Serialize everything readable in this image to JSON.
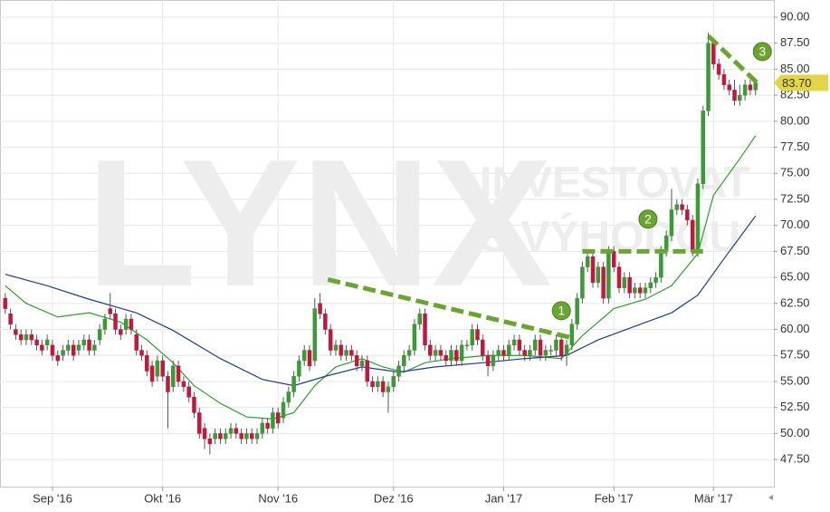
{
  "chart_data": {
    "type": "candlestick",
    "categories": [
      null,
      null,
      null,
      null,
      null,
      null,
      null,
      null,
      null,
      "Sep '16",
      null,
      null,
      null,
      null,
      null,
      null,
      null,
      null,
      null,
      null,
      null,
      null,
      null,
      null,
      null,
      null,
      null,
      null,
      null,
      null,
      "Okt '16",
      null,
      null,
      null,
      null,
      null,
      null,
      null,
      null,
      null,
      null,
      null,
      null,
      null,
      null,
      null,
      null,
      null,
      null,
      null,
      null,
      null,
      "Nov '16",
      null,
      null,
      null,
      null,
      null,
      null,
      null,
      null,
      null,
      null,
      null,
      null,
      null,
      null,
      null,
      null,
      null,
      null,
      null,
      null,
      null,
      "Dez '16",
      null,
      null,
      null,
      null,
      null,
      null,
      null,
      null,
      null,
      null,
      null,
      null,
      null,
      null,
      null,
      null,
      null,
      null,
      null,
      null,
      "Jan '17",
      null,
      null,
      null,
      null,
      null,
      null,
      null,
      null,
      null,
      null,
      null,
      null,
      null,
      null,
      null,
      null,
      null,
      null,
      null,
      null,
      "Feb '17",
      null,
      null,
      null,
      null,
      null,
      null,
      null,
      null,
      null,
      null,
      null,
      null,
      null,
      null,
      null,
      null,
      null,
      null,
      "Mär '17",
      null,
      null,
      null,
      null,
      null,
      null,
      null,
      null
    ],
    "open": [
      63,
      61.5,
      60,
      59.5,
      59,
      59.5,
      59,
      58.5,
      58.5,
      58.5,
      57.5,
      57.5,
      58,
      58.5,
      58,
      58.5,
      59,
      58,
      59,
      60,
      62,
      61.5,
      60,
      60,
      61,
      59.5,
      58,
      57.5,
      56.5,
      55.5,
      57,
      55.5,
      54.5,
      56.5,
      55,
      54.5,
      53.5,
      52,
      50.5,
      49.5,
      49.5,
      50,
      49.5,
      50,
      50.5,
      50,
      49.5,
      50,
      49.5,
      50,
      51,
      50.5,
      52,
      51.5,
      53,
      54,
      55.5,
      57,
      58,
      57,
      62.5,
      61.5,
      60,
      58,
      58.5,
      57.5,
      58,
      57.5,
      56.5,
      57,
      55,
      54.5,
      55,
      54,
      54.5,
      55.5,
      56.5,
      57.5,
      58,
      60.5,
      61.5,
      58.5,
      57.5,
      58,
      57.5,
      57,
      58,
      57,
      58.5,
      58.5,
      60,
      59,
      57.5,
      56.5,
      57.5,
      58,
      57.5,
      58.5,
      59,
      58,
      57.5,
      58,
      59,
      57.5,
      58,
      58,
      59,
      57.5,
      58.5,
      60.5,
      63,
      66,
      67,
      64.5,
      66,
      63,
      67.5,
      66,
      64,
      65,
      63.5,
      64,
      63.5,
      64,
      64.5,
      65,
      67.5,
      69,
      71.5,
      72,
      71.5,
      70.5,
      67.5,
      74,
      81,
      87.5,
      85.5,
      84.5,
      83.5,
      83,
      82,
      82.5,
      83.5,
      83
    ],
    "high": [
      63.5,
      62,
      60.5,
      60,
      60,
      60,
      59.5,
      59,
      59.5,
      59,
      58,
      58.5,
      59,
      59,
      59,
      59.5,
      59.5,
      59,
      60.5,
      61.5,
      63.5,
      62,
      60.5,
      61.5,
      61.5,
      60,
      58.5,
      58,
      57,
      57.5,
      57.5,
      56,
      57,
      57,
      55.5,
      55,
      54,
      52.5,
      51,
      50,
      50.5,
      50.5,
      50.5,
      51,
      51,
      50.5,
      50.5,
      50.5,
      50.5,
      51.5,
      51.5,
      52.5,
      52.5,
      53.5,
      54.5,
      56,
      57.5,
      58.5,
      58.5,
      63,
      63.5,
      62,
      60.5,
      59,
      59,
      58.5,
      58.5,
      58,
      57.5,
      57.5,
      55.5,
      55.5,
      55.5,
      55,
      56,
      57,
      58,
      58.5,
      61,
      62,
      62,
      59,
      58.5,
      58.5,
      58,
      58.5,
      58.5,
      59,
      59,
      60.5,
      60.5,
      59.5,
      58,
      58,
      58.5,
      58.5,
      59,
      59.5,
      59.5,
      58.5,
      58.5,
      59.5,
      59.5,
      58.5,
      58.5,
      59.5,
      59.5,
      59,
      61,
      63.5,
      66.5,
      67.5,
      67.5,
      66.5,
      66.5,
      68,
      68,
      66.5,
      65.5,
      65.5,
      64.5,
      64.5,
      64.5,
      65,
      65.5,
      68,
      69.5,
      73.5,
      72.5,
      72.5,
      72,
      71,
      74.5,
      81.5,
      88.5,
      88,
      86,
      85,
      84,
      84,
      83.5,
      84,
      84,
      84
    ],
    "low": [
      61.5,
      60,
      59,
      58.5,
      58.5,
      58.5,
      58,
      57.5,
      58,
      57,
      56.5,
      57,
      57.5,
      57,
      57.5,
      58,
      57.5,
      57.5,
      58.5,
      59.5,
      61,
      59.5,
      59,
      59.5,
      59.5,
      57.5,
      57,
      55.5,
      54.5,
      55,
      55,
      50.5,
      54,
      54.5,
      54,
      53,
      51.5,
      49.5,
      48.5,
      48,
      49,
      49,
      49,
      49.5,
      49.5,
      49,
      49,
      49,
      49,
      49.5,
      50,
      50,
      50.5,
      51,
      52.5,
      53.5,
      55,
      56.5,
      56,
      56.5,
      61,
      59.5,
      57.5,
      57.5,
      57,
      57,
      57,
      56,
      56,
      54.5,
      54,
      54,
      53.5,
      52,
      54,
      55,
      56,
      57,
      57.5,
      60,
      58,
      57,
      57,
      57,
      56.5,
      56.5,
      56.5,
      56.5,
      58,
      58,
      58.5,
      57,
      55.5,
      56,
      57,
      57,
      57,
      58,
      57.5,
      57,
      57,
      57.5,
      57,
      57,
      57.5,
      57.5,
      57,
      56.5,
      58,
      60,
      62.5,
      65.5,
      64,
      64,
      62.5,
      62.5,
      65.5,
      63.5,
      63.5,
      63,
      63,
      63,
      63,
      63.5,
      64,
      64.5,
      67,
      68.5,
      71,
      71,
      70,
      67,
      67,
      73.5,
      80.5,
      85,
      84,
      83,
      82.5,
      81.5,
      81.5,
      82,
      82.5,
      82.5
    ],
    "close": [
      62,
      60.5,
      59.5,
      59,
      59.5,
      59,
      58.5,
      58,
      59,
      57.5,
      57,
      58,
      58.5,
      57.5,
      58.5,
      59,
      58,
      58.5,
      60,
      61,
      61.5,
      60,
      59.5,
      61,
      60,
      58,
      57.5,
      56,
      55,
      57,
      55.5,
      54,
      56.5,
      55,
      54.5,
      53.5,
      52,
      50,
      49.5,
      49,
      50,
      49.5,
      50,
      50.5,
      50,
      49.5,
      50,
      49.5,
      50,
      51,
      50.5,
      52,
      51,
      53,
      54,
      55.5,
      57,
      58,
      56.5,
      62,
      61.5,
      60,
      58,
      58.5,
      57.5,
      58,
      57.5,
      56.5,
      57,
      55,
      54.5,
      55,
      54,
      54.5,
      55.5,
      56.5,
      57.5,
      58,
      60.5,
      61.5,
      58.5,
      57.5,
      58,
      57.5,
      57,
      58,
      57,
      58.5,
      58.5,
      60,
      59,
      57.5,
      56.5,
      57.5,
      58,
      57.5,
      58.5,
      59,
      58,
      57.5,
      58,
      59,
      57.5,
      58,
      58,
      59,
      57.5,
      58.5,
      60.5,
      63,
      66,
      67,
      64.5,
      66,
      63,
      67.5,
      66,
      64,
      65,
      63.5,
      64,
      63.5,
      64,
      64.5,
      65,
      67.5,
      69,
      71.5,
      72,
      71.5,
      70.5,
      67.5,
      74,
      81,
      87.5,
      85.5,
      84.5,
      83.5,
      83,
      82,
      82.5,
      83.5,
      83,
      83.7
    ],
    "up_color": "#3a9a35",
    "down_color": "#c2183f",
    "lines": [
      {
        "color": "#2e9e2e",
        "x": [
          0,
          4,
          10,
          16,
          22,
          27,
          32,
          36,
          41,
          46,
          51,
          55,
          59,
          63,
          68,
          72,
          76,
          80,
          85,
          92,
          99,
          106,
          110,
          116,
          122,
          127,
          132,
          135,
          140,
          143
        ],
        "values": [
          64.2,
          62.5,
          61.2,
          61.6,
          60.7,
          59,
          56.8,
          54.6,
          52.9,
          51.6,
          51.4,
          52,
          54.6,
          56.4,
          57.2,
          56.4,
          55.9,
          56.8,
          57.2,
          57.5,
          57.5,
          57.2,
          59.4,
          62,
          62.9,
          64.2,
          67.3,
          72.9,
          76.4,
          78.6
        ]
      },
      {
        "color": "#1f3c8c",
        "x": [
          0,
          8,
          16,
          25,
          32,
          41,
          49,
          55,
          61,
          68,
          75,
          82,
          91,
          99,
          107,
          113,
          120,
          127,
          132,
          137,
          143
        ],
        "values": [
          65.3,
          64.2,
          62.9,
          61.6,
          59.9,
          57.2,
          55.2,
          54.6,
          55.5,
          56.4,
          55.9,
          56.4,
          56.8,
          57.2,
          57.5,
          59,
          60.3,
          61.6,
          63.3,
          66.8,
          70.9
        ]
      }
    ],
    "trendlines": [
      {
        "x": [
          61.5,
          108
        ],
        "values": [
          64.8,
          59.2
        ]
      },
      {
        "x": [
          110,
          133
        ],
        "values": [
          67.5,
          67.5
        ]
      },
      {
        "x": [
          134,
          143.5
        ],
        "values": [
          88.2,
          83.6
        ]
      }
    ],
    "trend_color": "#6aa530",
    "markers": [
      {
        "label": "1",
        "x": 106,
        "value": 61.8
      },
      {
        "label": "2",
        "x": 122.5,
        "value": 70.6
      },
      {
        "label": "3",
        "x": 144.3,
        "value": 86.7
      }
    ],
    "last_price": {
      "value": 83.7,
      "label": "83.70"
    },
    "watermark": [
      "LYNX",
      "INVESTOVAT",
      "S VÝHODOU"
    ],
    "xlim": [
      -1,
      146.5
    ],
    "ylim": [
      44.9,
      91.65
    ],
    "yticks": [
      {
        "value": 47.5,
        "label": "47.50"
      },
      {
        "value": 50,
        "label": "50.00"
      },
      {
        "value": 52.5,
        "label": "52.50"
      },
      {
        "value": 55,
        "label": "55.00"
      },
      {
        "value": 57.5,
        "label": "57.50"
      },
      {
        "value": 60,
        "label": "60.00"
      },
      {
        "value": 62.5,
        "label": "62.50"
      },
      {
        "value": 65,
        "label": "65.00"
      },
      {
        "value": 67.5,
        "label": "67.50"
      },
      {
        "value": 70,
        "label": "70.00"
      },
      {
        "value": 72.5,
        "label": "72.50"
      },
      {
        "value": 75,
        "label": "75.00"
      },
      {
        "value": 77.5,
        "label": "77.50"
      },
      {
        "value": 80,
        "label": "80.00"
      },
      {
        "value": 82.5,
        "label": "82.50"
      },
      {
        "value": 85,
        "label": "85.00"
      },
      {
        "value": 87.5,
        "label": "87.50"
      },
      {
        "value": 90,
        "label": "90.00"
      }
    ],
    "grid": true
  }
}
